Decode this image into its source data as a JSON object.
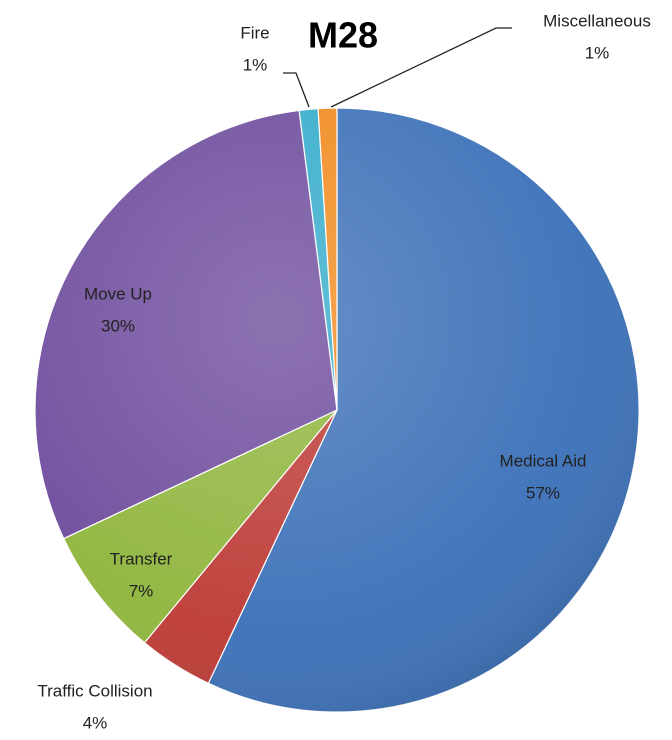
{
  "chart_data": {
    "type": "pie",
    "title": "M28",
    "categories": [
      "Medical Aid",
      "Traffic Collision",
      "Transfer",
      "Move Up",
      "Fire",
      "Miscellaneous"
    ],
    "values": [
      57,
      4,
      7,
      30,
      1,
      1
    ],
    "value_labels": [
      "57%",
      "4%",
      "7%",
      "30%",
      "1%",
      "1%"
    ],
    "colors": [
      "#3b70b8",
      "#bd3a35",
      "#8fb53c",
      "#6d4b9c",
      "#34abcb",
      "#f08a1e"
    ]
  }
}
